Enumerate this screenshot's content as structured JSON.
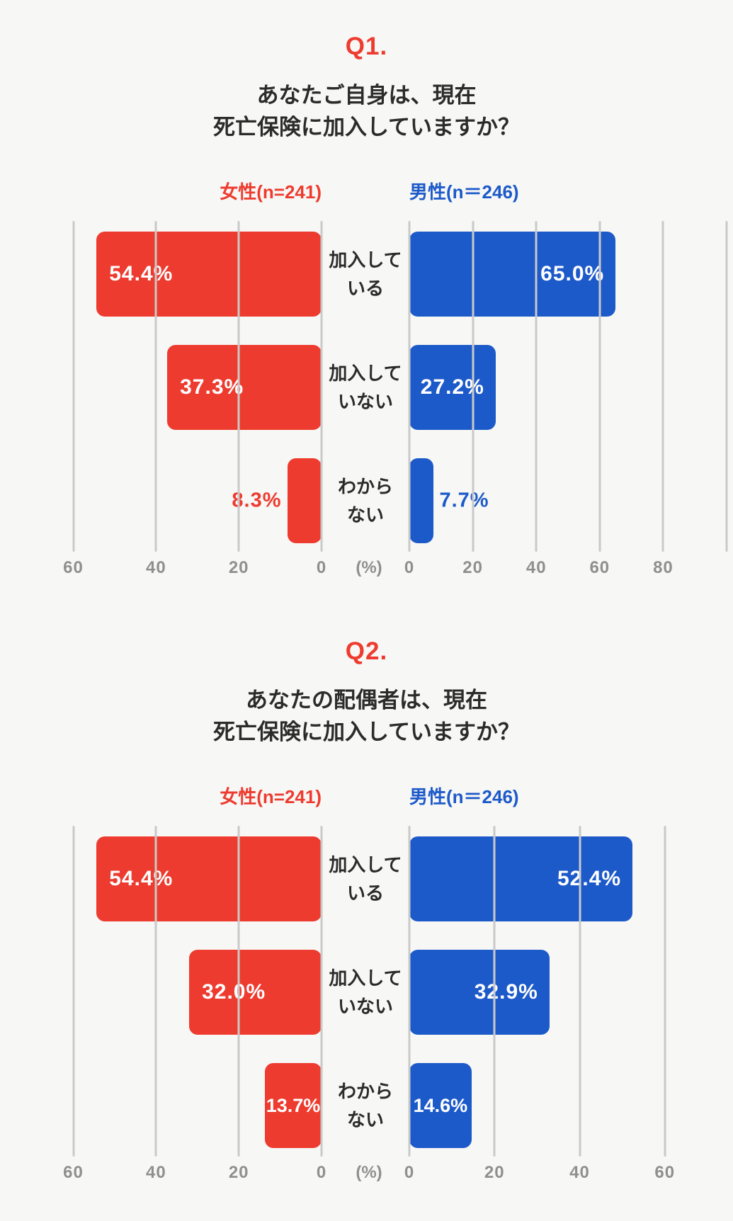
{
  "colors": {
    "female_red": "#ee3b2f",
    "male_blue": "#1d5ac9",
    "gridline_gray": "#c9c9c9",
    "axis_text_gray": "#8f8f8f",
    "title_text": "#2b2b2b",
    "background": "#f7f7f5",
    "bar_label_white": "#ffffff"
  },
  "chart_data": [
    {
      "type": "bar",
      "orientation": "horizontal-diverging",
      "heading": "Q1.",
      "title_lines": [
        "あなたご自身は、現在",
        "死亡保険に加入していますか？"
      ],
      "unit_label": "(%)",
      "categories": [
        [
          "加入して",
          "いる"
        ],
        [
          "加入して",
          "いない"
        ],
        [
          "わから",
          "ない"
        ]
      ],
      "series": [
        {
          "name": "女性(n=241)",
          "side": "left",
          "color": "#ee3b2f",
          "values": [
            54.4,
            37.3,
            8.3
          ],
          "labels": [
            "54.4%",
            "37.3%",
            "8.3%"
          ],
          "label_placement": [
            "inside-start",
            "inside-start",
            "outside"
          ]
        },
        {
          "name": "男性(n＝246)",
          "side": "right",
          "color": "#1d5ac9",
          "values": [
            65.0,
            27.2,
            7.7
          ],
          "labels": [
            "65.0%",
            "27.2%",
            "7.7%"
          ],
          "label_placement": [
            "inside-end",
            "inside-end",
            "outside"
          ]
        }
      ],
      "left_axis": {
        "ticks": [
          60,
          40,
          20,
          0
        ],
        "gridlines": [
          60,
          40,
          20,
          0
        ],
        "max": 63
      },
      "right_axis": {
        "ticks": [
          0,
          20,
          40,
          60,
          80
        ],
        "gridlines": [
          0,
          20,
          40,
          60,
          80,
          100
        ],
        "max": 102
      },
      "grid": true,
      "legend_position": "top"
    },
    {
      "type": "bar",
      "orientation": "horizontal-diverging",
      "heading": "Q2.",
      "title_lines": [
        "あなたの配偶者は、現在",
        "死亡保険に加入していますか？"
      ],
      "unit_label": "(%)",
      "categories": [
        [
          "加入して",
          "いる"
        ],
        [
          "加入して",
          "いない"
        ],
        [
          "わから",
          "ない"
        ]
      ],
      "series": [
        {
          "name": "女性(n=241)",
          "side": "left",
          "color": "#ee3b2f",
          "values": [
            54.4,
            32.0,
            13.7
          ],
          "labels": [
            "54.4%",
            "32.0%",
            "13.7%"
          ],
          "label_placement": [
            "inside-start",
            "inside-start",
            "inside-center"
          ]
        },
        {
          "name": "男性(n＝246)",
          "side": "right",
          "color": "#1d5ac9",
          "values": [
            52.4,
            32.9,
            14.6
          ],
          "labels": [
            "52.4%",
            "32.9%",
            "14.6%"
          ],
          "label_placement": [
            "inside-end",
            "inside-end",
            "inside-center"
          ]
        }
      ],
      "left_axis": {
        "ticks": [
          60,
          40,
          20,
          0
        ],
        "gridlines": [
          60,
          40,
          20,
          0
        ],
        "max": 63
      },
      "right_axis": {
        "ticks": [
          0,
          20,
          40,
          60
        ],
        "gridlines": [
          0,
          20,
          40,
          60
        ],
        "max": 76
      },
      "grid": true,
      "legend_position": "top"
    }
  ]
}
